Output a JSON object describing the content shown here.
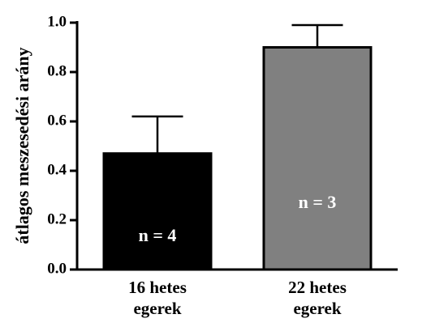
{
  "chart_data": {
    "type": "bar",
    "y_label": "átlagos meszesedési arány",
    "categories": [
      "16 hetes\negerek",
      "22 hetes\negerek"
    ],
    "values": [
      0.47,
      0.9
    ],
    "errors": [
      0.15,
      0.09
    ],
    "colors": [
      "#000000",
      "#808080"
    ],
    "annotations": [
      "n = 4",
      "n = 3"
    ],
    "ylim": [
      0,
      1
    ],
    "yticks": [
      {
        "value": 0,
        "label": "0.0"
      },
      {
        "value": 0.2,
        "label": "0.2"
      },
      {
        "value": 0.4,
        "label": "0.4"
      },
      {
        "value": 0.6,
        "label": "0.6"
      },
      {
        "value": 0.8,
        "label": "0.8"
      },
      {
        "value": 1,
        "label": "1.0"
      }
    ]
  }
}
